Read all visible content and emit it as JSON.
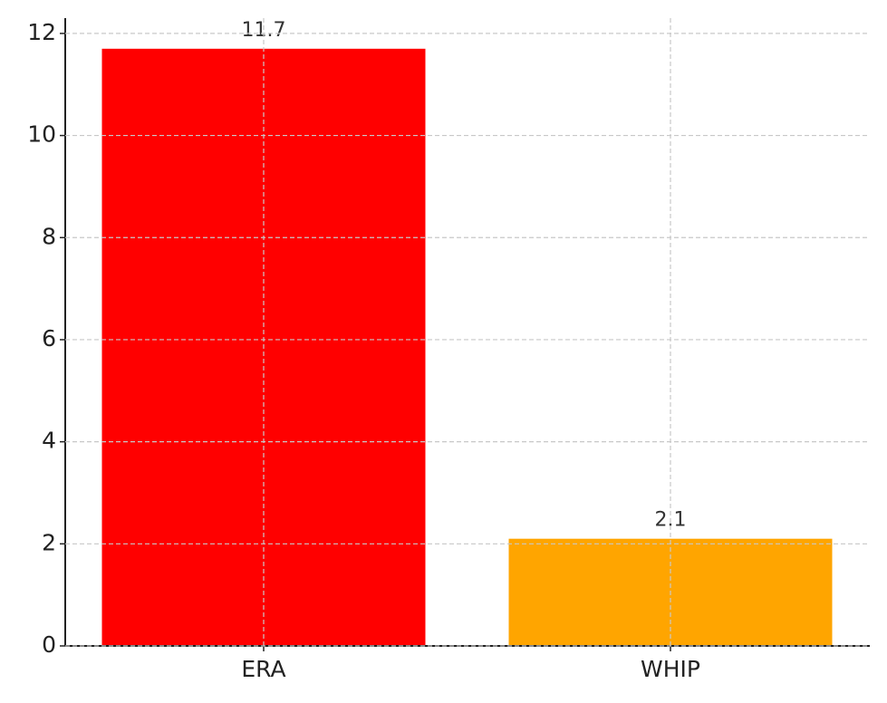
{
  "chart_data": {
    "type": "bar",
    "categories": [
      "ERA",
      "WHIP"
    ],
    "values": [
      11.7,
      2.1
    ],
    "colors": [
      "#ff0000",
      "#ffa500"
    ],
    "ylim": [
      0,
      12.3
    ],
    "yticks": [
      0,
      2,
      4,
      6,
      8,
      10,
      12
    ],
    "grid": true
  }
}
